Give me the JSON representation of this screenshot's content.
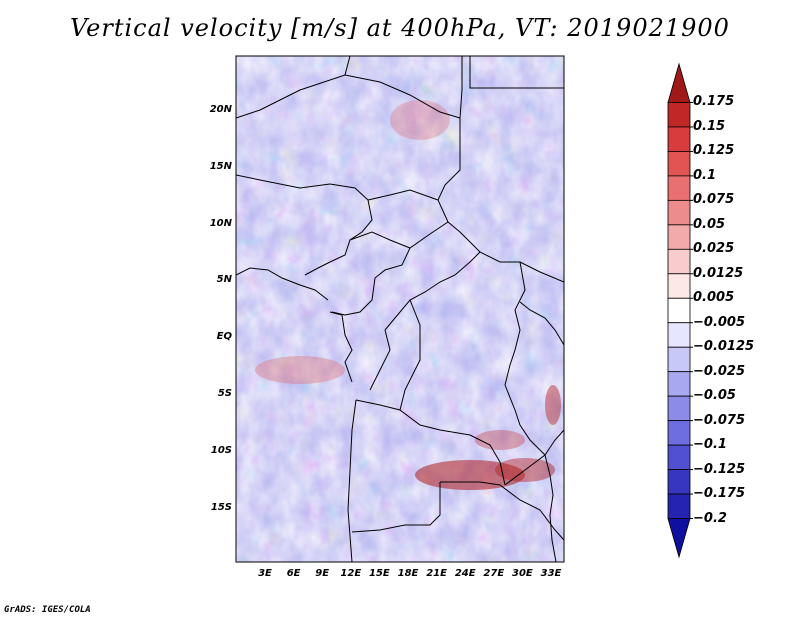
{
  "title": "Vertical velocity [m/s] at 400hPa, VT: 2019021900",
  "credit": "GrADS: IGES/COLA",
  "map": {
    "lat_ticks": [
      "20N",
      "15N",
      "10N",
      "5N",
      "EQ",
      "5S",
      "10S",
      "15S"
    ],
    "lon_ticks": [
      "3E",
      "6E",
      "9E",
      "12E",
      "15E",
      "18E",
      "21E",
      "24E",
      "27E",
      "30E",
      "33E"
    ]
  },
  "colorbar": {
    "levels": [
      "0.175",
      "0.15",
      "0.125",
      "0.1",
      "0.075",
      "0.05",
      "0.025",
      "0.0125",
      "0.005",
      "-0.005",
      "-0.0125",
      "-0.025",
      "-0.05",
      "-0.075",
      "-0.1",
      "-0.125",
      "-0.175",
      "-0.2"
    ],
    "colors": [
      "#a01818",
      "#c02828",
      "#d83c3c",
      "#e05454",
      "#e87070",
      "#ec8c8c",
      "#f2aaaa",
      "#f8cccc",
      "#fde8e8",
      "#ffffff",
      "#e6e6ff",
      "#c8c8f8",
      "#a8a8f0",
      "#8c8ce8",
      "#6e6ee0",
      "#5050d0",
      "#3636c0",
      "#2424b0",
      "#1010a0"
    ]
  }
}
